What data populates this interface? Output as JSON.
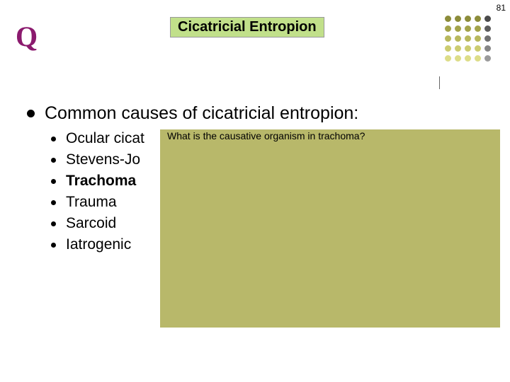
{
  "page_number": "81",
  "q_letter": "Q",
  "title": "Cicatricial Entropion",
  "main_heading": "Common causes of cicatricial entropion:",
  "sub_items": [
    {
      "text": "Ocular cicat",
      "bold": false
    },
    {
      "text": "Stevens-Jo",
      "bold": false
    },
    {
      "text": "Trachoma",
      "bold": true
    },
    {
      "text": "Trauma",
      "bold": false
    },
    {
      "text": "Sarcoid",
      "bold": false
    },
    {
      "text": "Iatrogenic",
      "bold": false
    }
  ],
  "overlay_question": "What is the causative organism in trachoma?",
  "overlay_bg": "#b8b86a",
  "title_bg": "#c1e08a",
  "q_color": "#8b1a6e",
  "dot_colors": [
    "#8c8c3a",
    "#8c8c3a",
    "#8c8c3a",
    "#8c8c3a",
    "#4a4a4a",
    "#a3a34a",
    "#a3a34a",
    "#a3a34a",
    "#a3a34a",
    "#5c5c5c",
    "#b8b85d",
    "#b8b85d",
    "#b8b85d",
    "#b8b85d",
    "#707070",
    "#cccc70",
    "#cccc70",
    "#cccc70",
    "#cccc70",
    "#858585",
    "#dddd88",
    "#dddd88",
    "#dddd88",
    "#dddd88",
    "#9a9a9a"
  ]
}
